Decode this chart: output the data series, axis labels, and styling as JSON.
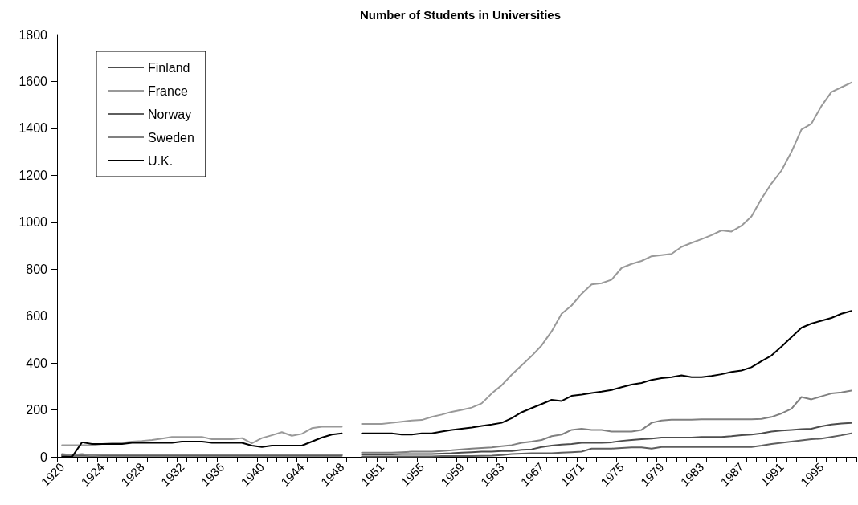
{
  "chart_data": {
    "type": "line",
    "title": "Number of Students in Universities",
    "categories": [
      "1920",
      null,
      null,
      null,
      "1924",
      null,
      null,
      null,
      "1928",
      null,
      null,
      null,
      "1932",
      null,
      null,
      null,
      "1936",
      null,
      null,
      null,
      "1940",
      null,
      null,
      null,
      "1944",
      null,
      null,
      null,
      "1948",
      null,
      null,
      null,
      "1951",
      null,
      null,
      null,
      "1955",
      null,
      null,
      null,
      "1959",
      null,
      null,
      null,
      "1963",
      null,
      null,
      null,
      "1967",
      null,
      null,
      null,
      "1971",
      null,
      null,
      null,
      "1975",
      null,
      null,
      null,
      "1979",
      null,
      null,
      null,
      "1983",
      null,
      null,
      null,
      "1987",
      null,
      null,
      null,
      "1991",
      null,
      null,
      null,
      "1995",
      null,
      null,
      null
    ],
    "series": [
      {
        "name": "Finland",
        "color": "#4d4d4d",
        "values": [
          8,
          5,
          8,
          5,
          8,
          8,
          8,
          8,
          8,
          8,
          8,
          8,
          8,
          8,
          8,
          8,
          8,
          8,
          8,
          8,
          8,
          8,
          8,
          8,
          8,
          8,
          8,
          8,
          8,
          null,
          10,
          10,
          10,
          10,
          12,
          12,
          12,
          12,
          14,
          15,
          18,
          20,
          22,
          22,
          25,
          25,
          30,
          32,
          42,
          48,
          52,
          55,
          60,
          60,
          60,
          62,
          68,
          72,
          75,
          78,
          82,
          82,
          82,
          82,
          85,
          85,
          85,
          88,
          92,
          95,
          100,
          108,
          112,
          115,
          118,
          120,
          130,
          138,
          142,
          145
        ]
      },
      {
        "name": "France",
        "color": "#999999",
        "values": [
          50,
          50,
          50,
          50,
          55,
          58,
          60,
          65,
          68,
          72,
          78,
          85,
          85,
          85,
          85,
          75,
          75,
          75,
          80,
          58,
          80,
          92,
          105,
          90,
          98,
          122,
          128,
          128,
          128,
          null,
          140,
          140,
          140,
          145,
          150,
          155,
          157,
          170,
          180,
          192,
          200,
          210,
          228,
          270,
          305,
          350,
          390,
          430,
          475,
          535,
          610,
          645,
          695,
          735,
          740,
          755,
          805,
          822,
          835,
          855,
          860,
          865,
          895,
          912,
          928,
          945,
          965,
          960,
          985,
          1025,
          1100,
          1165,
          1220,
          1300,
          1395,
          1420,
          1495,
          1555,
          1575,
          1595
        ]
      },
      {
        "name": "Norway",
        "color": "#5e5e5e",
        "values": [
          4,
          4,
          4,
          4,
          4,
          4,
          4,
          4,
          4,
          4,
          4,
          4,
          4,
          4,
          4,
          4,
          4,
          4,
          4,
          4,
          4,
          4,
          4,
          4,
          4,
          4,
          4,
          4,
          4,
          null,
          2,
          2,
          2,
          2,
          2,
          2,
          2,
          2,
          3,
          3,
          3,
          3,
          4,
          5,
          8,
          12,
          14,
          15,
          15,
          15,
          18,
          20,
          22,
          35,
          35,
          35,
          38,
          40,
          40,
          35,
          42,
          42,
          42,
          42,
          42,
          42,
          42,
          42,
          42,
          42,
          48,
          55,
          60,
          65,
          70,
          75,
          78,
          85,
          92,
          100
        ]
      },
      {
        "name": "Sweden",
        "color": "#808080",
        "values": [
          12,
          8,
          12,
          6,
          10,
          10,
          10,
          10,
          10,
          10,
          10,
          10,
          10,
          10,
          10,
          10,
          10,
          10,
          10,
          10,
          10,
          10,
          10,
          10,
          10,
          10,
          10,
          10,
          10,
          null,
          18,
          18,
          18,
          18,
          20,
          22,
          22,
          22,
          25,
          28,
          32,
          35,
          38,
          40,
          45,
          50,
          60,
          65,
          72,
          88,
          95,
          115,
          120,
          115,
          115,
          108,
          108,
          108,
          115,
          145,
          155,
          158,
          158,
          158,
          160,
          160,
          160,
          160,
          160,
          160,
          162,
          170,
          185,
          205,
          255,
          245,
          258,
          270,
          275,
          282
        ]
      },
      {
        "name": "U.K.",
        "color": "#000000",
        "values": [
          0,
          0,
          62,
          55,
          55,
          55,
          55,
          60,
          60,
          60,
          60,
          60,
          65,
          65,
          65,
          60,
          60,
          60,
          60,
          48,
          42,
          48,
          48,
          48,
          48,
          65,
          82,
          95,
          100,
          null,
          100,
          100,
          100,
          100,
          95,
          95,
          100,
          100,
          108,
          115,
          120,
          125,
          132,
          138,
          145,
          165,
          190,
          208,
          225,
          243,
          238,
          260,
          265,
          272,
          278,
          285,
          297,
          308,
          315,
          328,
          335,
          340,
          347,
          340,
          340,
          345,
          352,
          362,
          368,
          382,
          408,
          432,
          470,
          510,
          550,
          568,
          580,
          592,
          610,
          622
        ]
      }
    ],
    "ylim": [
      0,
      1800
    ],
    "yticks": [
      0,
      200,
      400,
      600,
      800,
      1000,
      1200,
      1400,
      1600,
      1800
    ],
    "grid": false,
    "legend": "top left",
    "marker": "none",
    "line_style": "solid"
  }
}
